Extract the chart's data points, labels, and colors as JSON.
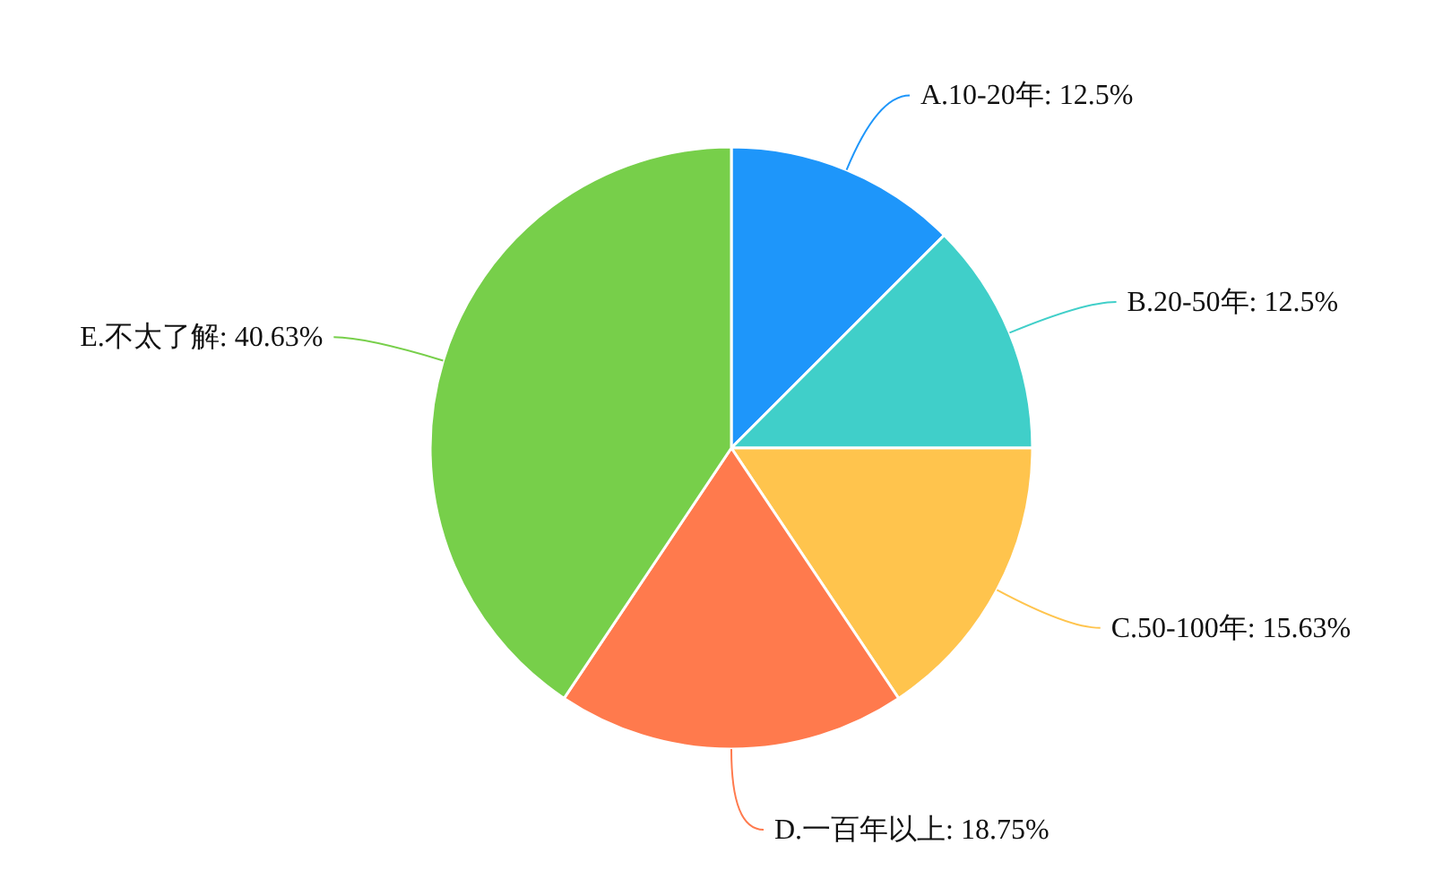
{
  "chart_data": {
    "type": "pie",
    "categories": [
      "A.10-20年",
      "B.20-50年",
      "C.50-100年",
      "D.一百年以上",
      "E.不太了解"
    ],
    "values": [
      12.5,
      12.5,
      15.63,
      18.75,
      40.63
    ],
    "value_labels": [
      "12.5%",
      "12.5%",
      "15.63%",
      "18.75%",
      "40.63%"
    ],
    "colors": [
      "#1e96fa",
      "#40cfc9",
      "#ffc44d",
      "#ff7a4d",
      "#77cf4a"
    ]
  }
}
